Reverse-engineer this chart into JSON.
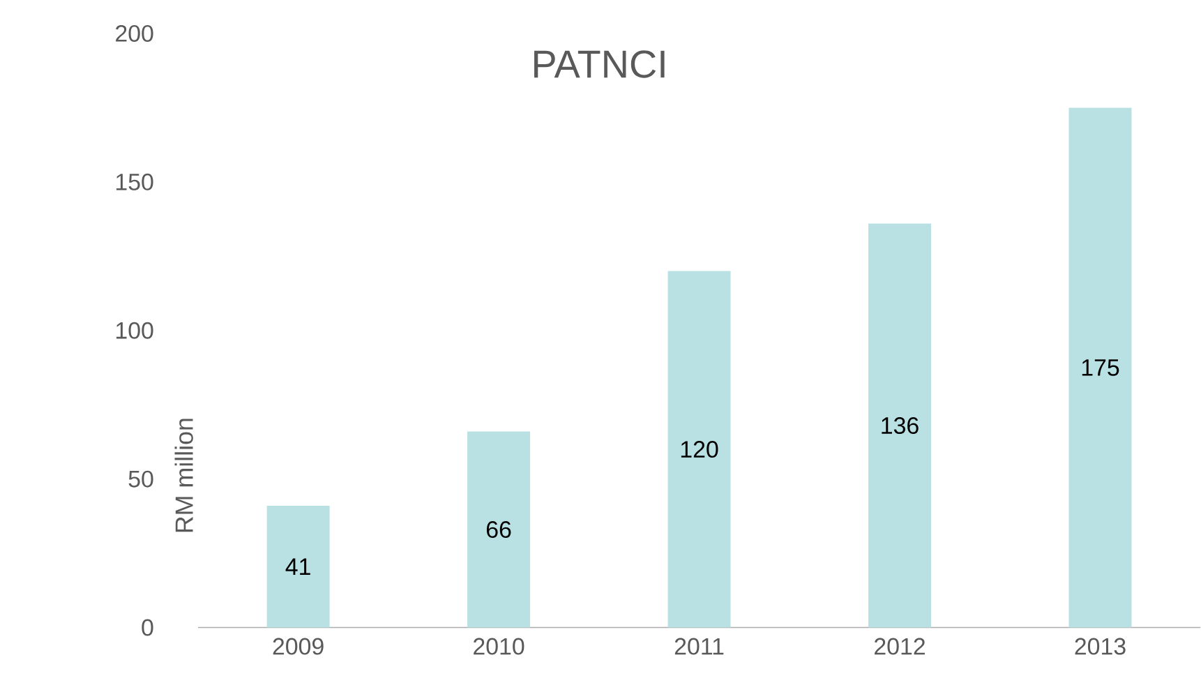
{
  "chart_data": {
    "type": "bar",
    "title": "PATNCI",
    "ylabel": "RM million",
    "categories": [
      "2009",
      "2010",
      "2011",
      "2012",
      "2013"
    ],
    "values": [
      41,
      66,
      120,
      136,
      175
    ],
    "color": "#b9e0e3",
    "ylim": [
      0,
      200
    ],
    "yticks": [
      0,
      50,
      100,
      150,
      200
    ],
    "data_labels": true
  }
}
